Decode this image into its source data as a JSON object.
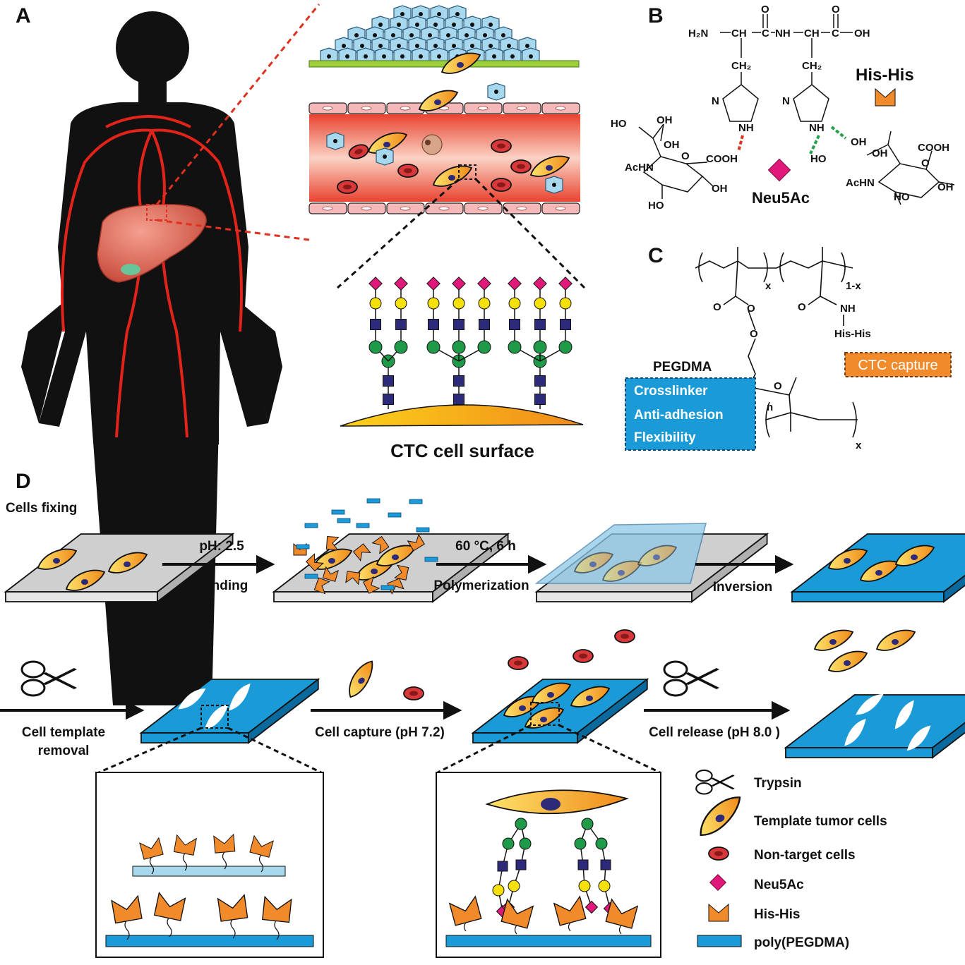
{
  "panels": {
    "a": "A",
    "b": "B",
    "c": "C",
    "d": "D"
  },
  "panel_a": {
    "surface_label": "CTC cell surface"
  },
  "panel_b": {
    "his_his_label": "His-His",
    "neu5ac_label": "Neu5Ac",
    "atoms": {
      "h2n": "H₂N",
      "ch1": "CH",
      "c1": "C",
      "nh": "NH",
      "ch2": "CH",
      "c2": "C",
      "oh": "OH",
      "o1": "O",
      "o2": "O",
      "ch2a": "CH₂",
      "ch2b": "CH₂",
      "n1": "N",
      "nh1": "NH",
      "n2": "N",
      "nh2": "NH",
      "ho1": "HO",
      "oh1": "OH",
      "oh2": "OH",
      "achn1": "AcHN",
      "o_ring1": "O",
      "cooh1": "COOH",
      "oh3": "OH",
      "ho2": "HO",
      "oh4": "OH",
      "ho3": "HO",
      "oh5": "OH",
      "achn2": "AcHN",
      "o_ring2": "O",
      "cooh2": "COOH",
      "ho4": "HO",
      "oh6": "OH"
    }
  },
  "panel_c": {
    "sub_x": "x",
    "sub_1x": "1-x",
    "o_a": "O",
    "o_b": "O",
    "o_c": "O",
    "o_d": "O",
    "o_e": "O",
    "nh": "NH",
    "hishis": "His-His",
    "n": "n",
    "sub_x2": "x",
    "pegdma_title": "PEGDMA",
    "pegdma_props": [
      "Crosslinker",
      "Anti-adhesion",
      "Flexibility"
    ],
    "ctc_capture": "CTC capture"
  },
  "panel_d": {
    "cells_fixing": "Cells fixing",
    "step1_top": "pH: 2.5",
    "step1_bottom": "Binding",
    "step2_top": "60 °C, 6 h",
    "step2_bottom": "Polymerization",
    "step3_bottom": "Inversion",
    "step4_bottom_1": "Cell template",
    "step4_bottom_2": "removal",
    "step5_bottom": "Cell capture (pH 7.2)",
    "step6_bottom": "Cell release (pH 8.0 )"
  },
  "legend": [
    {
      "icon": "scissors-icon",
      "label": "Trypsin"
    },
    {
      "icon": "tumor-cell-icon",
      "label": "Template tumor cells"
    },
    {
      "icon": "non-target-cell-icon",
      "label": "Non-target cells"
    },
    {
      "icon": "neu5ac-diamond-icon",
      "label": "Neu5Ac"
    },
    {
      "icon": "his-his-icon",
      "label": "His-His"
    },
    {
      "icon": "poly-pegdma-bar-icon",
      "label": "poly(PEGDMA)"
    }
  ],
  "colors": {
    "human": "#111111",
    "vessel": "#e2231a",
    "liver": "#e07060",
    "sugar_diamond": "#e0187a",
    "galactose": "#f5e00a",
    "glcnac": "#2e2a7a",
    "mannose": "#1e9a48",
    "his_his": "#f08a2a",
    "pegdma_blue": "#1a9ad6",
    "tumor_cell": "#f5b21a",
    "nontarget": "#d8383a",
    "dashed_red": "#e03020",
    "dashed_green": "#22a04a"
  }
}
